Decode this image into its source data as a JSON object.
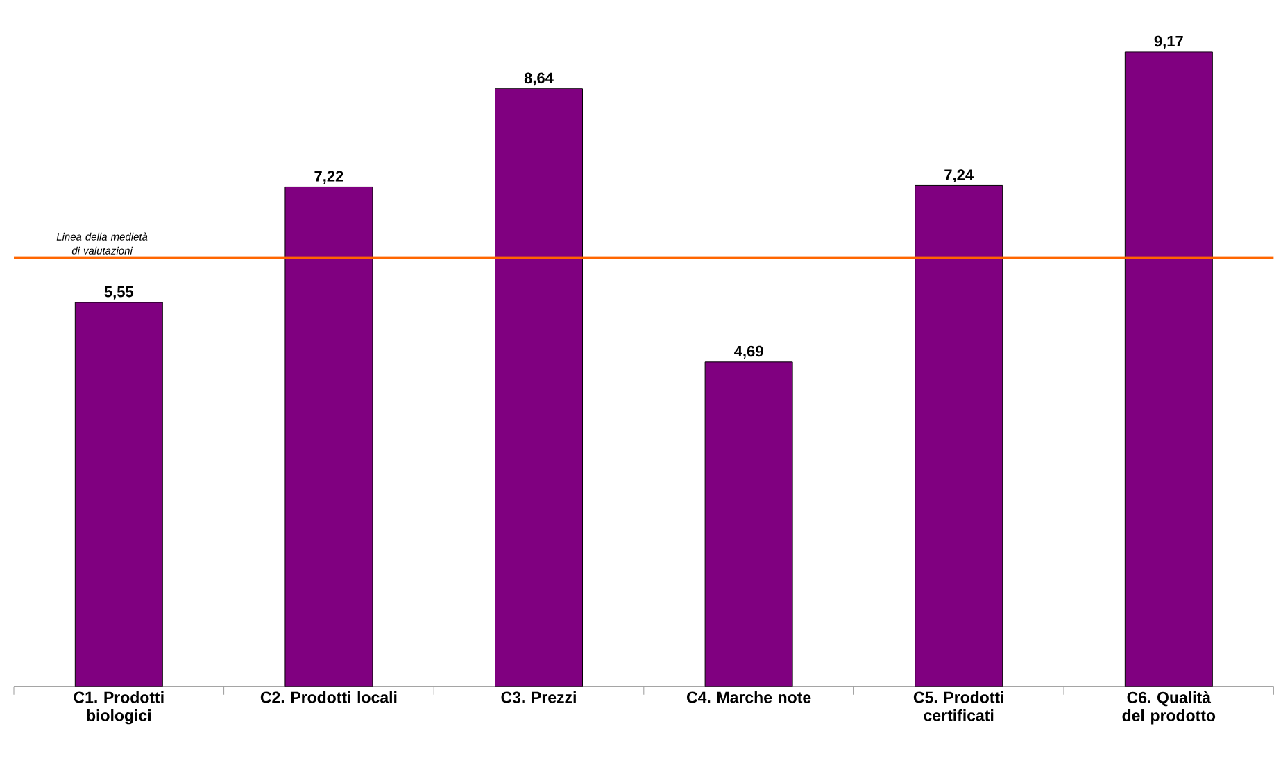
{
  "chart_data": {
    "type": "bar",
    "categories": [
      "C1. Prodotti biologici",
      "C2. Prodotti locali",
      "C3. Prezzi",
      "C4. Marche note",
      "C5. Prodotti certificati",
      "C6. Qualità del prodotto"
    ],
    "values": [
      5.55,
      7.22,
      8.64,
      4.69,
      7.24,
      9.17
    ],
    "value_labels": [
      "5,55",
      "7,22",
      "8,64",
      "4,69",
      "7,24",
      "9,17"
    ],
    "color": "#800080",
    "ref_lines": [
      {
        "axis": "y",
        "value": 6.2,
        "label": "Linea della medietà di valutazioni",
        "color": "#ff6600"
      }
    ],
    "tick_labels": "x"
  }
}
